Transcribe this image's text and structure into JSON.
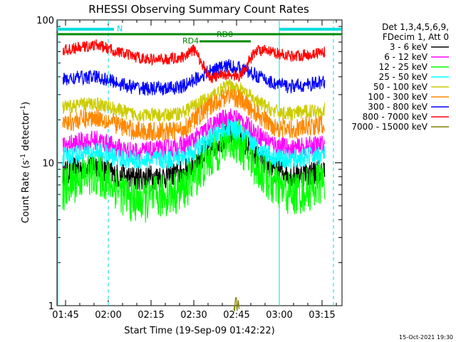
{
  "chart_data": {
    "type": "line",
    "title": "RHESSI Observing Summary Count Rates",
    "xlabel": "Start Time (19-Sep-09 01:42:22)",
    "ylabel_main": "Count Rate (s",
    "ylabel_sup1": "-1",
    "ylabel_mid": " detector",
    "ylabel_sup2": "-1",
    "ylabel_end": ")",
    "y_scale": "log",
    "ylim": [
      1,
      100
    ],
    "xlim": [
      "01:42",
      "03:22"
    ],
    "x_ticks": [
      "01:45",
      "02:00",
      "02:15",
      "02:30",
      "02:45",
      "03:00",
      "03:15"
    ],
    "y_ticks": [
      "1",
      "10",
      "100"
    ],
    "legend_header": [
      "Det 1,3,4,5,6,9,",
      "FDecim 1, Att 0"
    ],
    "legend_placement": "top-right",
    "series": [
      {
        "name": "3 - 6 keV",
        "color": "#000000",
        "x": [
          "01:44",
          "01:50",
          "01:56",
          "02:02",
          "02:08",
          "02:14",
          "02:20",
          "02:26",
          "02:30",
          "02:36",
          "02:42",
          "02:46",
          "02:52",
          "02:58",
          "03:04",
          "03:10",
          "03:16"
        ],
        "values": [
          8.5,
          9.2,
          9.8,
          8.2,
          7.8,
          7.9,
          8.0,
          8.5,
          10.0,
          12.5,
          16.0,
          15.0,
          11.0,
          9.0,
          8.2,
          8.4,
          8.8
        ]
      },
      {
        "name": "6 - 12 keV",
        "color": "#ff00ff",
        "x": [
          "01:44",
          "01:50",
          "01:56",
          "02:02",
          "02:08",
          "02:14",
          "02:20",
          "02:26",
          "02:30",
          "02:36",
          "02:42",
          "02:46",
          "02:52",
          "02:58",
          "03:04",
          "03:10",
          "03:16"
        ],
        "values": [
          13,
          14,
          14.5,
          13,
          12,
          12,
          12.5,
          13,
          14.5,
          18,
          21,
          20,
          16,
          13.5,
          12.5,
          13,
          13.5
        ]
      },
      {
        "name": "12 - 25 keV",
        "color": "#00ff00",
        "x": [
          "01:44",
          "01:50",
          "01:56",
          "02:02",
          "02:08",
          "02:14",
          "02:20",
          "02:26",
          "02:30",
          "02:36",
          "02:42",
          "02:46",
          "02:52",
          "02:58",
          "03:04",
          "03:10",
          "03:16"
        ],
        "values": [
          6.5,
          8.0,
          8.5,
          7.0,
          5.5,
          5.5,
          6.0,
          6.5,
          8.0,
          11.0,
          15.0,
          14.0,
          9.5,
          7.0,
          6.0,
          6.5,
          7.5
        ]
      },
      {
        "name": "25 - 50 keV",
        "color": "#00ffff",
        "x": [
          "01:44",
          "01:50",
          "01:56",
          "02:02",
          "02:08",
          "02:14",
          "02:20",
          "02:26",
          "02:30",
          "02:36",
          "02:42",
          "02:46",
          "02:52",
          "02:58",
          "03:04",
          "03:10",
          "03:16"
        ],
        "values": [
          11.0,
          11.5,
          12.0,
          11.0,
          10.5,
          10.5,
          10.5,
          11.0,
          12.0,
          15.0,
          17.5,
          16.5,
          13.0,
          11.0,
          10.5,
          11.0,
          11.5
        ]
      },
      {
        "name": "50 - 100 keV",
        "color": "#cccc00",
        "x": [
          "01:44",
          "01:50",
          "01:56",
          "02:02",
          "02:08",
          "02:14",
          "02:20",
          "02:26",
          "02:30",
          "02:36",
          "02:42",
          "02:46",
          "02:52",
          "02:58",
          "03:04",
          "03:10",
          "03:16"
        ],
        "values": [
          24,
          25.5,
          26,
          24,
          22,
          21.5,
          21.5,
          22.5,
          25,
          29,
          35,
          33,
          27,
          23,
          22,
          23,
          23.5
        ]
      },
      {
        "name": "100 - 300 keV",
        "color": "#ff8800",
        "x": [
          "01:44",
          "01:50",
          "01:56",
          "02:02",
          "02:08",
          "02:14",
          "02:20",
          "02:26",
          "02:30",
          "02:36",
          "02:42",
          "02:46",
          "02:52",
          "02:58",
          "03:04",
          "03:10",
          "03:16"
        ],
        "values": [
          19,
          20,
          21,
          19,
          17,
          16.5,
          16.5,
          17,
          20,
          25,
          30,
          28,
          22,
          18,
          17,
          18,
          18.5
        ]
      },
      {
        "name": "300 - 800 keV",
        "color": "#0000ff",
        "x": [
          "01:44",
          "01:50",
          "01:56",
          "02:02",
          "02:08",
          "02:14",
          "02:20",
          "02:26",
          "02:30",
          "02:36",
          "02:42",
          "02:46",
          "02:52",
          "02:58",
          "03:04",
          "03:10",
          "03:16"
        ],
        "values": [
          38,
          39.5,
          40,
          37,
          34,
          33,
          33,
          34,
          38,
          44,
          48,
          46,
          41,
          36,
          34,
          35,
          37
        ]
      },
      {
        "name": "800 - 7000 keV",
        "color": "#ff0000",
        "x": [
          "01:44",
          "01:50",
          "01:56",
          "02:02",
          "02:08",
          "02:14",
          "02:20",
          "02:26",
          "02:30",
          "02:36",
          "02:42",
          "02:46",
          "02:52",
          "02:58",
          "03:04",
          "03:10",
          "03:16"
        ],
        "values": [
          61,
          64,
          67,
          61,
          56,
          53,
          53,
          55,
          62,
          39,
          42,
          40,
          62,
          59,
          56,
          57,
          60
        ]
      },
      {
        "name": "7000 - 15000 keV",
        "color": "#808000",
        "x": [
          "02:44",
          "02:46"
        ],
        "values": [
          1.02,
          1.02
        ]
      }
    ],
    "annotations": [
      {
        "label": "N",
        "color": "#00dddd"
      },
      {
        "label": "RD0",
        "color": "#008800"
      },
      {
        "label": "RD4",
        "color": "#008800"
      }
    ],
    "grid": false,
    "footer_date": "15-Oct-2021 19:30"
  }
}
